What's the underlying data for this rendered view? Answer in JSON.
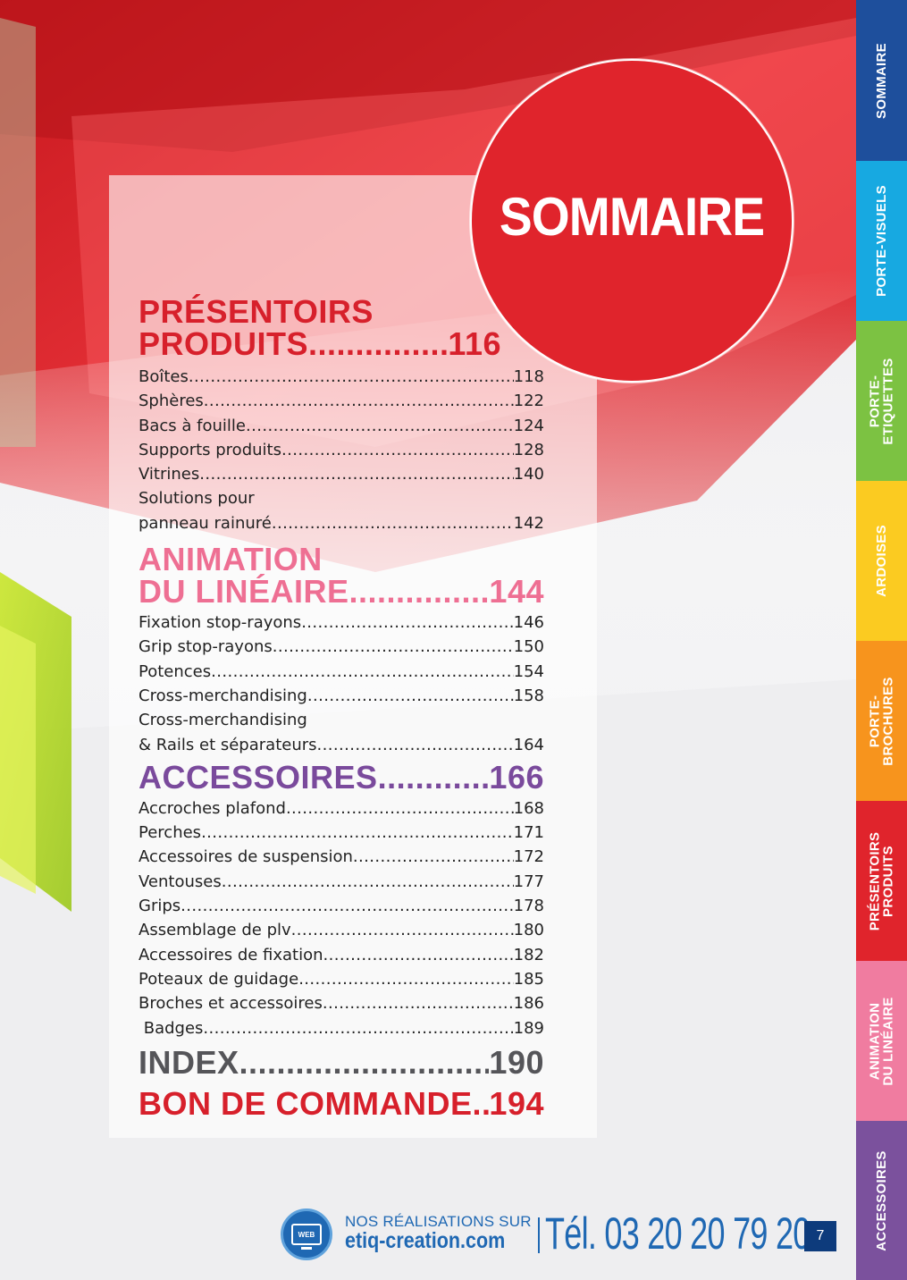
{
  "title": "SOMMAIRE",
  "sections": [
    {
      "title_lines": [
        "PRÉSENTOIRS",
        "PRODUITS"
      ],
      "page": "116",
      "color": "#d7202b",
      "items": [
        {
          "label": "Boîtes",
          "page": "118"
        },
        {
          "label": "Sphères",
          "page": "122"
        },
        {
          "label": "Bacs à fouille",
          "page": "124"
        },
        {
          "label": "Supports produits",
          "page": "128"
        },
        {
          "label": "Vitrines",
          "page": "140"
        },
        {
          "label_lines": [
            "Solutions pour",
            "panneau rainuré"
          ],
          "page": "142"
        }
      ]
    },
    {
      "title_lines": [
        "ANIMATION",
        "DU LINÉAIRE"
      ],
      "page": "144",
      "color": "#ee6f93",
      "items": [
        {
          "label": "Fixation stop-rayons",
          "page": "146"
        },
        {
          "label": "Grip stop-rayons",
          "page": "150"
        },
        {
          "label": "Potences",
          "page": "154"
        },
        {
          "label": "Cross-merchandising",
          "page": "158"
        },
        {
          "label_lines": [
            "Cross-merchandising",
            "& Rails et séparateurs"
          ],
          "page": "164"
        }
      ]
    },
    {
      "title_lines": [
        "ACCESSOIRES"
      ],
      "page": "166",
      "color": "#7a4a9c",
      "items": [
        {
          "label": "Accroches plafond",
          "page": "168"
        },
        {
          "label": "Perches",
          "page": "171"
        },
        {
          "label": "Accessoires de suspension",
          "page": "172"
        },
        {
          "label": "Ventouses",
          "page": "177"
        },
        {
          "label": "Grips",
          "page": "178"
        },
        {
          "label": "Assemblage de plv",
          "page": "180"
        },
        {
          "label": "Accessoires de fixation",
          "page": "182"
        },
        {
          "label": "Poteaux de guidage",
          "page": "185"
        },
        {
          "label": "Broches et accessoires",
          "page": "186"
        },
        {
          "label": " Badges",
          "page": "189"
        }
      ]
    },
    {
      "title_lines": [
        "INDEX"
      ],
      "page": "190",
      "color": "#555559",
      "items": []
    },
    {
      "title_lines": [
        "BON DE COMMANDE"
      ],
      "page": "194",
      "color": "#d7202b",
      "items": []
    }
  ],
  "tabs": [
    {
      "lines": [
        "SOMMAIRE"
      ],
      "color": "#1e4f9c"
    },
    {
      "lines": [
        "PORTE-VISUELS"
      ],
      "color": "#17a9e1"
    },
    {
      "lines": [
        "PORTE-",
        "ETIQUETTES"
      ],
      "color": "#7cc242"
    },
    {
      "lines": [
        "ARDOISES"
      ],
      "color": "#fbcb21"
    },
    {
      "lines": [
        "PORTE-",
        "BROCHURES"
      ],
      "color": "#f7941d"
    },
    {
      "lines": [
        "PRÉSENTOIRS",
        "PRODUITS"
      ],
      "color": "#e0242c"
    },
    {
      "lines": [
        "ANIMATION",
        "DU LINÉAIRE"
      ],
      "color": "#f07ca0"
    },
    {
      "lines": [
        "ACCESSOIRES"
      ],
      "color": "#7b519d"
    }
  ],
  "footer": {
    "web_icon_text": "WEB",
    "line1": "NOS RÉALISATIONS SUR",
    "website": "etiq-creation.com",
    "phone": "Tél. 03 20 20 79 20",
    "page_number": "7"
  }
}
